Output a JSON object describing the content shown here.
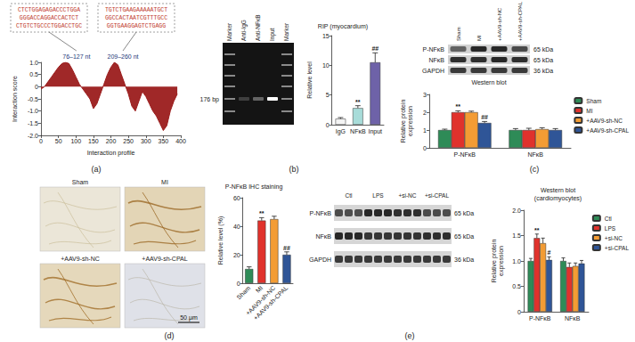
{
  "chart_data": [
    {
      "type": "area",
      "x": [
        0,
        10,
        20,
        30,
        40,
        50,
        60,
        70,
        80,
        90,
        100,
        110,
        120,
        130,
        140,
        150,
        160,
        170,
        180,
        190,
        200,
        210,
        220,
        230,
        240,
        250,
        260,
        270,
        280,
        290,
        300,
        310,
        320,
        330,
        340,
        350,
        360,
        370,
        380,
        390
      ],
      "values": [
        -0.1,
        0.0,
        0.2,
        0.4,
        0.6,
        0.8,
        0.95,
        1.0,
        0.95,
        0.7,
        0.4,
        0.1,
        -0.1,
        -0.3,
        -0.5,
        -0.9,
        -0.7,
        -0.3,
        0.1,
        0.5,
        0.8,
        1.0,
        0.9,
        0.5,
        0.1,
        -0.3,
        -0.8,
        -1.0,
        -0.6,
        -0.2,
        -0.4,
        -0.7,
        -1.0,
        -1.2,
        -1.5,
        -1.8,
        -1.6,
        -1.0,
        -0.6,
        -0.3
      ],
      "color": "#9b1c1c",
      "xlabel": "Interaction profile",
      "ylabel": "Interaction score",
      "xlim": [
        0,
        400
      ],
      "xticks": [
        0,
        50,
        100,
        150,
        200,
        250,
        300,
        350,
        400
      ],
      "ylim": [
        -2,
        1
      ],
      "yticks": [
        {
          "value": -2,
          "label": "-2.0"
        },
        -1.5,
        {
          "value": -1,
          "label": "-1.0"
        },
        -0.5,
        0,
        0.5,
        {
          "value": 1,
          "label": "1.0"
        }
      ],
      "grid": false
    },
    {
      "type": "bar",
      "title": "RIP (myocardium)",
      "categories": [
        "IgG",
        "NFκB",
        "Input"
      ],
      "values": [
        1,
        2.8,
        10.5
      ],
      "errors": [
        0.2,
        0.4,
        1.6
      ],
      "marks": [
        null,
        "**",
        "##"
      ],
      "colors": [
        "#f4f4f4",
        "#a8dcd9",
        "#6e62a8"
      ],
      "ylabel": "Relative level",
      "ylim": [
        0,
        15
      ],
      "yticks": [
        0,
        5,
        10,
        15
      ],
      "grid": false
    },
    {
      "type": "bar",
      "categories": [
        "P-NFκB",
        "NFκB"
      ],
      "series": [
        {
          "name": "Sham",
          "color": "#2e8b57",
          "values": [
            1.0,
            1.0
          ],
          "errors": [
            0.05,
            0.08
          ]
        },
        {
          "name": "MI",
          "color": "#e0322c",
          "values": [
            2.0,
            1.0
          ],
          "errors": [
            0.08,
            0.1
          ],
          "marks": [
            "**",
            null
          ]
        },
        {
          "name": "+AAV9-sh-NC",
          "color": "#f39c34",
          "values": [
            2.0,
            1.05
          ],
          "errors": [
            0.06,
            0.08
          ]
        },
        {
          "name": "+AAV9-sh-CPAL",
          "color": "#2f5597",
          "values": [
            1.4,
            1.0
          ],
          "errors": [
            0.08,
            0.08
          ],
          "marks": [
            "##",
            null
          ]
        }
      ],
      "ylabel": "Relative protein expression",
      "ylim": [
        0,
        3
      ],
      "yticks": [
        0,
        1,
        2,
        3
      ],
      "legend": "right",
      "grid": false
    },
    {
      "type": "bar",
      "title": "P-NFκB IHC staining",
      "categories": [
        "Sham",
        "MI",
        "+AAV9-sh-NC",
        "+AAV9-sh-CPAL"
      ],
      "values": [
        10,
        44,
        45,
        20
      ],
      "errors": [
        1.5,
        2,
        2,
        2
      ],
      "marks": [
        null,
        "**",
        null,
        "##"
      ],
      "colors": [
        "#2e8b57",
        "#e0322c",
        "#f39c34",
        "#2f5597"
      ],
      "ylabel": "Relative level (%)",
      "ylim": [
        0,
        60
      ],
      "yticks": [
        0,
        20,
        40,
        60
      ],
      "grid": false
    },
    {
      "type": "bar",
      "title": "Western blot (cardiomyocytes)",
      "categories": [
        "P-NFκB",
        "NFκB"
      ],
      "series": [
        {
          "name": "Ctl",
          "color": "#2e8b57",
          "values": [
            1.0,
            1.0
          ],
          "errors": [
            0.05,
            0.06
          ]
        },
        {
          "name": "LPS",
          "color": "#e0322c",
          "values": [
            1.45,
            0.88
          ],
          "errors": [
            0.08,
            0.08
          ],
          "marks": [
            "**",
            null
          ]
        },
        {
          "name": "+si-NC",
          "color": "#f39c34",
          "values": [
            1.35,
            0.9
          ],
          "errors": [
            0.1,
            0.06
          ]
        },
        {
          "name": "+si-CPAL",
          "color": "#2f5597",
          "values": [
            1.02,
            0.95
          ],
          "errors": [
            0.06,
            0.06
          ],
          "marks": [
            "#",
            null
          ]
        }
      ],
      "ylabel": "Relative protein expression",
      "ylim": [
        0,
        2
      ],
      "yticks": [
        0,
        0.5,
        {
          "value": 1,
          "label": "1.0"
        },
        1.5,
        {
          "value": 2,
          "label": "2.0"
        }
      ],
      "legend": "right",
      "grid": false
    }
  ],
  "figure": {
    "letters": [
      "(a)",
      "(b)",
      "(c)",
      "(d)",
      "(e)"
    ],
    "a": {
      "sequences": [
        [
          "CTCTGGAGAGACCCTGGA",
          "GGGACCAGGACCACTCT",
          "CTGTCTGCCCTGGACCTGC"
        ],
        [
          "TGTCTGAAGAAAAATGCT",
          "GGCCACTAATCGTTTGCC",
          "GGTGAAGGAGTCTGAGG"
        ]
      ],
      "regions": [
        {
          "label": "76–127 nt",
          "start": 76,
          "end": 127
        },
        {
          "label": "209–260 nt",
          "start": 209,
          "end": 260
        }
      ]
    },
    "b": {
      "lanes": [
        "Marker",
        "Anti-IgG",
        "Anti-NFκB",
        "Input",
        "Marker"
      ],
      "band_label": "176 bp"
    },
    "c": {
      "lanes": [
        "Sham",
        "MI",
        "+AAV9-sh-NC",
        "+AAV9-sh-CPAL"
      ],
      "rows": [
        {
          "name": "P-NFκB",
          "size": "65 kDa"
        },
        {
          "name": "NFκB",
          "size": "65 kDa"
        },
        {
          "name": "GAPDH",
          "size": "36 kDa"
        }
      ],
      "caption": "Western blot"
    },
    "d": {
      "tiles": [
        "Sham",
        "MI",
        "+AAV9-sh-NC",
        "+AAV9-sh-CPAL"
      ],
      "scale_bar": "50 μm"
    },
    "e": {
      "lanes": [
        "Ctl",
        "LPS",
        "+si-NC",
        "+si-CPAL"
      ],
      "rows": [
        {
          "name": "P-NFκB",
          "size": "65 kDa"
        },
        {
          "name": "NFκB",
          "size": "65 kDa"
        },
        {
          "name": "GAPDH",
          "size": "36 kDa"
        }
      ]
    }
  }
}
